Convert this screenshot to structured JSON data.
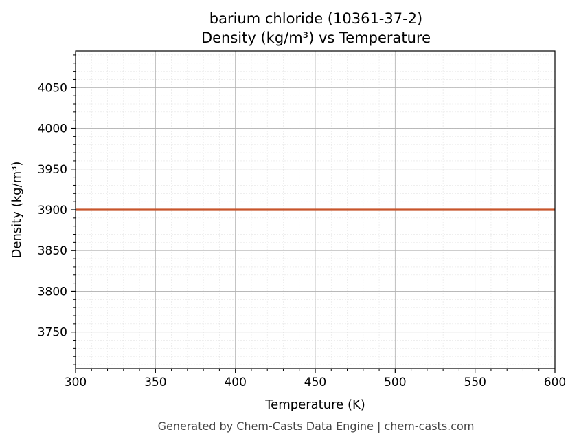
{
  "chart_data": {
    "type": "line",
    "title": "barium chloride (10361-37-2)",
    "subtitle": "Density (kg/m³) vs Temperature",
    "xlabel": "Temperature (K)",
    "ylabel": "Density (kg/m³)",
    "xlim": [
      300,
      600
    ],
    "ylim": [
      3705,
      4095
    ],
    "x_ticks": [
      300,
      350,
      400,
      450,
      500,
      550,
      600
    ],
    "y_ticks": [
      3750,
      3800,
      3850,
      3900,
      3950,
      4000,
      4050
    ],
    "grid": true,
    "series": [
      {
        "color": "#c8552b",
        "x": [
          300,
          350,
          400,
          450,
          500,
          550,
          600
        ],
        "y": [
          3900,
          3900,
          3900,
          3900,
          3900,
          3900,
          3900
        ]
      }
    ],
    "footer": "Generated by Chem-Casts Data Engine | chem-casts.com"
  }
}
